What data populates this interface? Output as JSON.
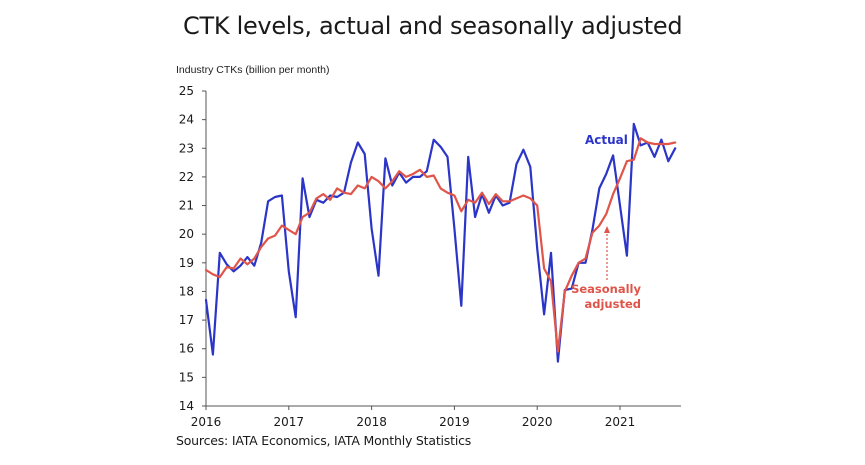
{
  "chart_data": {
    "type": "line",
    "title": "CTK levels, actual and seasonally adjusted",
    "ylabel": "Industry CTKs (billion per month)",
    "xlabel": "",
    "source": "Sources: IATA Economics, IATA Monthly Statistics",
    "ylim": [
      14,
      25
    ],
    "yticks": [
      "14",
      "15",
      "16",
      "17",
      "18",
      "19",
      "20",
      "21",
      "22",
      "23",
      "24",
      "25"
    ],
    "xticks": [
      "2016",
      "2017",
      "2018",
      "2019",
      "2020",
      "2021"
    ],
    "x_start": "2016-01",
    "x_frequency": "monthly",
    "grid": false,
    "series": [
      {
        "name": "Actual",
        "label": "Actual",
        "color": "#2b35c8",
        "values": [
          17.7,
          15.8,
          19.35,
          18.95,
          18.7,
          18.9,
          19.2,
          18.9,
          19.7,
          21.15,
          21.3,
          21.35,
          18.7,
          17.1,
          21.95,
          20.6,
          21.2,
          21.1,
          21.35,
          21.3,
          21.45,
          22.5,
          23.2,
          22.8,
          20.2,
          18.55,
          22.65,
          21.7,
          22.15,
          21.8,
          22.0,
          22.0,
          22.2,
          23.3,
          23.05,
          22.7,
          20.2,
          17.5,
          22.7,
          20.6,
          21.4,
          20.75,
          21.35,
          21.0,
          21.1,
          22.45,
          22.95,
          22.35,
          19.5,
          17.2,
          19.35,
          15.55,
          18.05,
          18.1,
          19.0,
          19.0,
          20.15,
          21.6,
          22.1,
          22.75,
          21.0,
          19.25,
          23.85,
          23.1,
          23.2,
          22.7,
          23.3,
          22.55,
          23.0
        ]
      },
      {
        "name": "Seasonally adjusted",
        "label_lines": [
          "Seasonally",
          "adjusted"
        ],
        "color": "#e0554a",
        "values": [
          18.75,
          18.6,
          18.5,
          18.85,
          18.8,
          19.15,
          18.95,
          19.15,
          19.55,
          19.85,
          19.95,
          20.3,
          20.15,
          20.0,
          20.6,
          20.75,
          21.25,
          21.4,
          21.2,
          21.6,
          21.45,
          21.4,
          21.7,
          21.6,
          22.0,
          21.85,
          21.6,
          21.85,
          22.2,
          22.0,
          22.1,
          22.25,
          22.0,
          22.05,
          21.6,
          21.45,
          21.35,
          20.8,
          21.2,
          21.1,
          21.45,
          21.05,
          21.4,
          21.15,
          21.15,
          21.25,
          21.35,
          21.25,
          21.0,
          18.8,
          18.35,
          15.9,
          18.0,
          18.55,
          19.0,
          19.15,
          20.05,
          20.3,
          20.7,
          21.4,
          21.95,
          22.55,
          22.6,
          23.35,
          23.2,
          23.15,
          23.15,
          23.15,
          23.2
        ]
      }
    ]
  }
}
